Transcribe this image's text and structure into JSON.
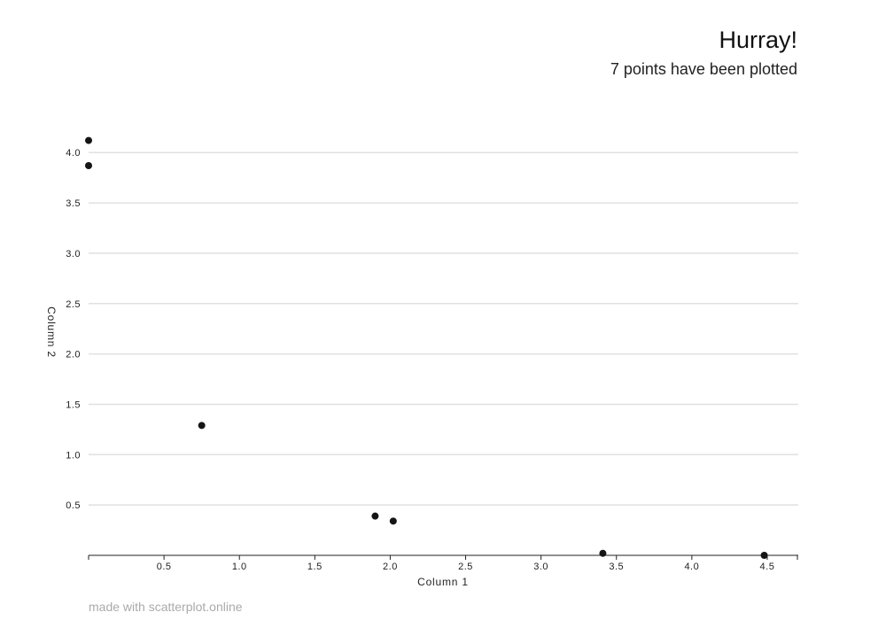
{
  "header": {
    "title": "Hurray!",
    "subtitle": "7 points have been plotted"
  },
  "footer": {
    "credit": "made with scatterplot.online"
  },
  "colors": {
    "point": "#151515",
    "grid": "#e0e0e0",
    "axis": "#222222"
  },
  "chart_data": {
    "type": "scatter",
    "title": "Hurray!",
    "subtitle": "7 points have been plotted",
    "xlabel": "Column 1",
    "ylabel": "Column 2",
    "xlim": [
      0,
      4.7
    ],
    "ylim": [
      0,
      4.6
    ],
    "xticks": [
      "0.5",
      "1.0",
      "1.5",
      "2.0",
      "2.5",
      "3.0",
      "3.5",
      "4.0",
      "4.5"
    ],
    "yticks": [
      "0.5",
      "1.0",
      "1.5",
      "2.0",
      "2.5",
      "3.0",
      "3.5",
      "4.0"
    ],
    "grid": "horizontal",
    "points": [
      {
        "x": 0.0,
        "y": 4.12
      },
      {
        "x": 0.0,
        "y": 3.87
      },
      {
        "x": 0.75,
        "y": 1.29
      },
      {
        "x": 1.9,
        "y": 0.39
      },
      {
        "x": 2.02,
        "y": 0.34
      },
      {
        "x": 3.41,
        "y": 0.02
      },
      {
        "x": 4.48,
        "y": 0.0
      }
    ]
  }
}
